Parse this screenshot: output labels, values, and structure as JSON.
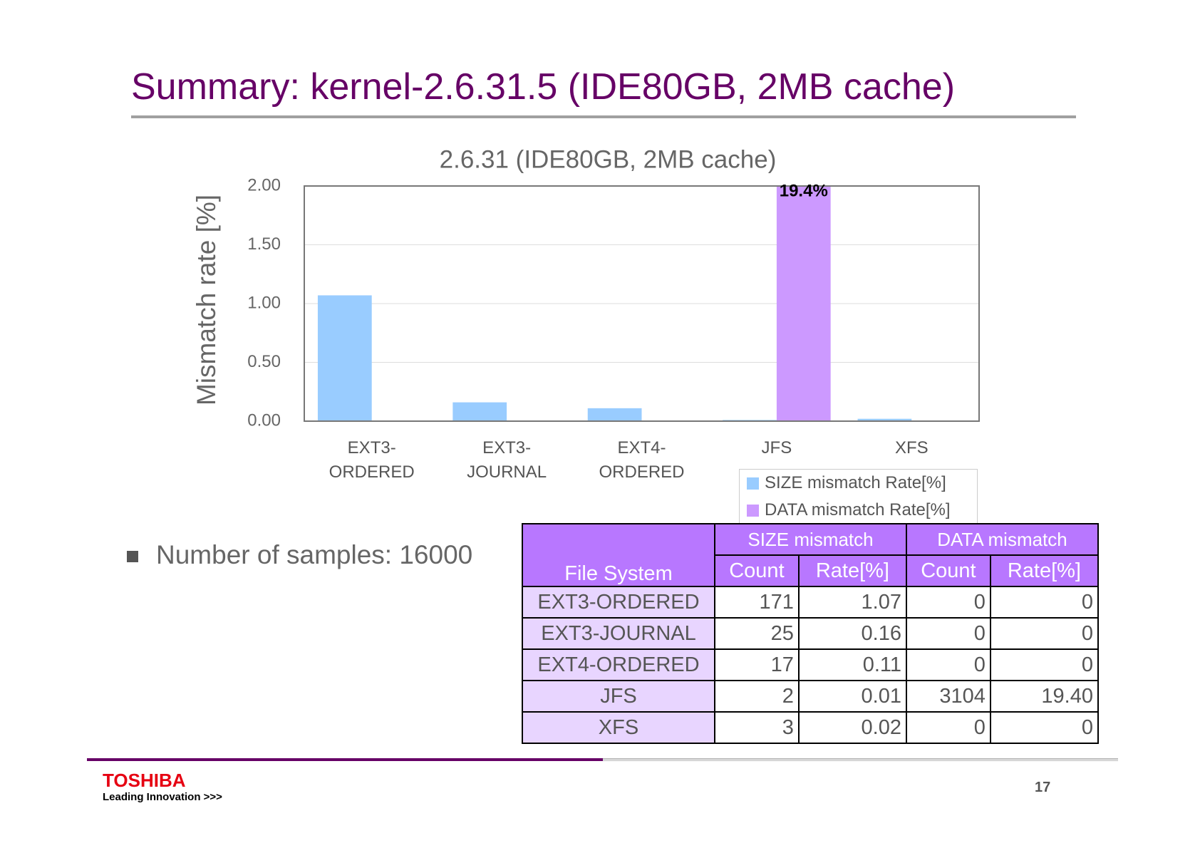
{
  "title": "Summary: kernel-2.6.31.5 (IDE80GB, 2MB cache)",
  "chart_data": {
    "type": "bar",
    "title": "2.6.31 (IDE80GB, 2MB cache)",
    "y_label": "Mismatch rate [%]",
    "categories": [
      "EXT3-\nORDERED",
      "EXT3-\nJOURNAL",
      "EXT4-\nORDERED",
      "JFS",
      "XFS"
    ],
    "series": [
      {
        "name": "SIZE mismatch Rate[%]",
        "color": "#99ccff",
        "values": [
          1.07,
          0.16,
          0.11,
          0.01,
          0.02
        ]
      },
      {
        "name": "DATA mismatch Rate[%]",
        "color": "#cc99ff",
        "values": [
          0,
          0,
          0,
          19.4,
          0
        ],
        "value_labels": [
          null,
          null,
          null,
          "19.4%",
          null
        ]
      }
    ],
    "ylim": [
      0,
      2
    ],
    "yticks": [
      {
        "value": 0,
        "label": "0.00"
      },
      {
        "value": 0.5,
        "label": "0.50"
      },
      {
        "value": 1,
        "label": "1.00"
      },
      {
        "value": 1.5,
        "label": "1.50"
      },
      {
        "value": 2,
        "label": "2.00"
      }
    ],
    "grid": true,
    "legend": "bottom-right"
  },
  "bullet": "Number of samples: 16000",
  "table": {
    "header": [
      "File System",
      "SIZE mismatch",
      "DATA mismatch"
    ],
    "subheader": [
      "Count",
      "Rate[%]",
      "Count",
      "Rate[%]"
    ],
    "rows": [
      [
        "EXT3-ORDERED",
        "171",
        "1.07",
        "0",
        "0"
      ],
      [
        "EXT3-JOURNAL",
        "25",
        "0.16",
        "0",
        "0"
      ],
      [
        "EXT4-ORDERED",
        "17",
        "0.11",
        "0",
        "0"
      ],
      [
        "JFS",
        "2",
        "0.01",
        "3104",
        "19.40"
      ],
      [
        "XFS",
        "3",
        "0.02",
        "0",
        "0"
      ]
    ]
  },
  "footer": {
    "logo": "TOSHIBA",
    "tagline": "Leading Innovation >>>",
    "page": "17"
  }
}
